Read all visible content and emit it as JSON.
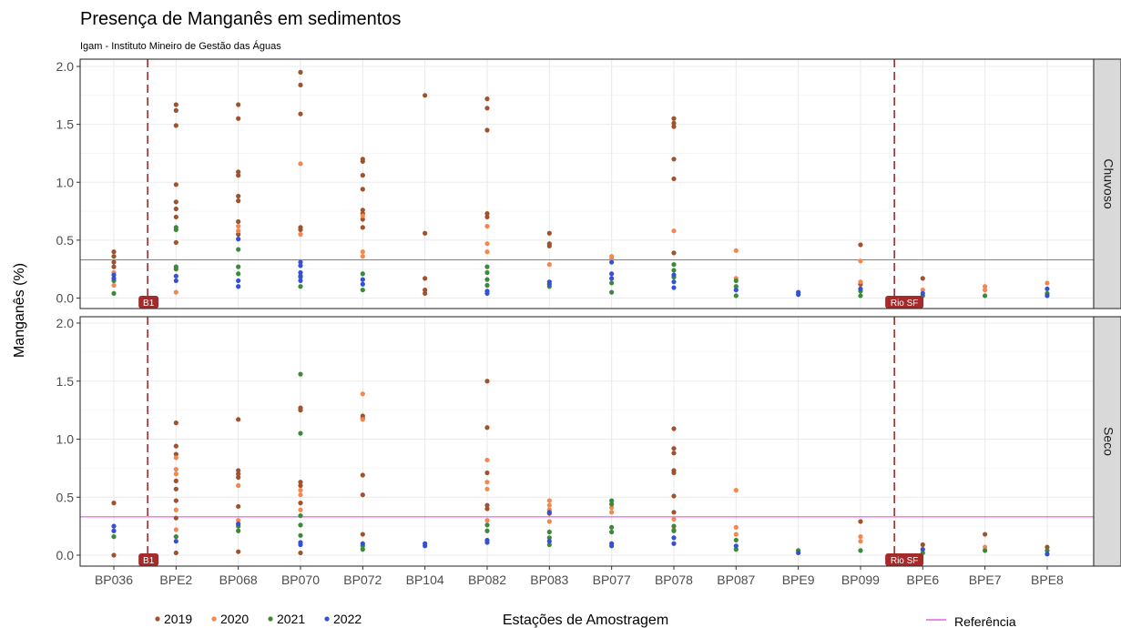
{
  "chart_data": {
    "type": "scatter",
    "title": "Presença de Manganês em sedimentos",
    "subtitle": "Igam - Instituto Mineiro de Gestão das Águas",
    "xlabel": "Estações de Amostragem",
    "ylabel": "Manganês (%)",
    "ylim": [
      -0.08,
      2.05
    ],
    "yticks": [
      "0.0",
      "0.5",
      "1.0",
      "1.5",
      "2.0"
    ],
    "grid": true,
    "categories": [
      "BP036",
      "BPE2",
      "BP068",
      "BP070",
      "BP072",
      "BP104",
      "BP082",
      "BP083",
      "BP077",
      "BP078",
      "BP087",
      "BPE9",
      "BP099",
      "BPE6",
      "BPE7",
      "BPE8"
    ],
    "facets": [
      "Chuvoso",
      "Seco"
    ],
    "colors": {
      "2019": "#a0522d",
      "2020": "#f4874e",
      "2021": "#3a8a3a",
      "2022": "#3550d4"
    },
    "reference": {
      "label": "Referência",
      "value": 0.33,
      "color": "#e040e0"
    },
    "vlines": [
      {
        "label": "B1",
        "after_category": "BP036"
      },
      {
        "label": "Rio SF",
        "after_category": "BP099"
      }
    ],
    "legend": {
      "placement": "bottom",
      "items": [
        "2019",
        "2020",
        "2021",
        "2022"
      ]
    },
    "series": [
      {
        "facet": "Chuvoso",
        "name": "2019",
        "points": [
          [
            "BP036",
            0.4
          ],
          [
            "BP036",
            0.36
          ],
          [
            "BP036",
            0.31
          ],
          [
            "BP036",
            0.27
          ],
          [
            "BPE2",
            1.67
          ],
          [
            "BPE2",
            1.62
          ],
          [
            "BPE2",
            1.49
          ],
          [
            "BPE2",
            0.98
          ],
          [
            "BPE2",
            0.83
          ],
          [
            "BPE2",
            0.77
          ],
          [
            "BPE2",
            0.7
          ],
          [
            "BPE2",
            0.48
          ],
          [
            "BP068",
            1.67
          ],
          [
            "BP068",
            1.55
          ],
          [
            "BP068",
            1.09
          ],
          [
            "BP068",
            1.06
          ],
          [
            "BP068",
            0.88
          ],
          [
            "BP068",
            0.84
          ],
          [
            "BP068",
            0.66
          ],
          [
            "BP068",
            0.55
          ],
          [
            "BP070",
            1.95
          ],
          [
            "BP070",
            1.84
          ],
          [
            "BP070",
            1.59
          ],
          [
            "BP070",
            0.61
          ],
          [
            "BP070",
            0.59
          ],
          [
            "BP072",
            1.2
          ],
          [
            "BP072",
            1.18
          ],
          [
            "BP072",
            1.06
          ],
          [
            "BP072",
            0.94
          ],
          [
            "BP072",
            0.76
          ],
          [
            "BP072",
            0.73
          ],
          [
            "BP072",
            0.68
          ],
          [
            "BP072",
            0.61
          ],
          [
            "BP104",
            1.75
          ],
          [
            "BP104",
            0.56
          ],
          [
            "BP104",
            0.17
          ],
          [
            "BP104",
            0.07
          ],
          [
            "BP104",
            0.04
          ],
          [
            "BP082",
            1.72
          ],
          [
            "BP082",
            1.64
          ],
          [
            "BP082",
            1.45
          ],
          [
            "BP082",
            0.73
          ],
          [
            "BP082",
            0.7
          ],
          [
            "BP083",
            0.56
          ],
          [
            "BP083",
            0.47
          ],
          [
            "BP083",
            0.45
          ],
          [
            "BP078",
            1.55
          ],
          [
            "BP078",
            1.51
          ],
          [
            "BP078",
            1.48
          ],
          [
            "BP078",
            1.2
          ],
          [
            "BP078",
            1.03
          ],
          [
            "BP078",
            0.39
          ],
          [
            "BP099",
            0.46
          ],
          [
            "BP099",
            0.12
          ],
          [
            "BPE6",
            0.17
          ]
        ]
      },
      {
        "facet": "Chuvoso",
        "name": "2020",
        "points": [
          [
            "BP036",
            0.22
          ],
          [
            "BP036",
            0.11
          ],
          [
            "BPE2",
            0.05
          ],
          [
            "BP068",
            0.62
          ],
          [
            "BP068",
            0.58
          ],
          [
            "BP070",
            1.16
          ],
          [
            "BP070",
            0.55
          ],
          [
            "BP072",
            0.71
          ],
          [
            "BP072",
            0.4
          ],
          [
            "BP072",
            0.36
          ],
          [
            "BP082",
            0.62
          ],
          [
            "BP082",
            0.47
          ],
          [
            "BP082",
            0.4
          ],
          [
            "BP083",
            0.29
          ],
          [
            "BP077",
            0.36
          ],
          [
            "BP077",
            0.34
          ],
          [
            "BP078",
            0.58
          ],
          [
            "BP087",
            0.41
          ],
          [
            "BP087",
            0.17
          ],
          [
            "BP099",
            0.32
          ],
          [
            "BP099",
            0.14
          ],
          [
            "BPE6",
            0.07
          ],
          [
            "BPE7",
            0.1
          ],
          [
            "BPE7",
            0.07
          ],
          [
            "BPE8",
            0.13
          ]
        ]
      },
      {
        "facet": "Chuvoso",
        "name": "2021",
        "points": [
          [
            "BP036",
            0.04
          ],
          [
            "BP036",
            0.15
          ],
          [
            "BPE2",
            0.61
          ],
          [
            "BPE2",
            0.59
          ],
          [
            "BPE2",
            0.27
          ],
          [
            "BPE2",
            0.25
          ],
          [
            "BP068",
            0.42
          ],
          [
            "BP068",
            0.27
          ],
          [
            "BP068",
            0.21
          ],
          [
            "BP070",
            0.18
          ],
          [
            "BP070",
            0.1
          ],
          [
            "BP072",
            0.21
          ],
          [
            "BP072",
            0.07
          ],
          [
            "BP082",
            0.27
          ],
          [
            "BP082",
            0.22
          ],
          [
            "BP082",
            0.16
          ],
          [
            "BP082",
            0.11
          ],
          [
            "BP083",
            0.1
          ],
          [
            "BP077",
            0.13
          ],
          [
            "BP077",
            0.05
          ],
          [
            "BP078",
            0.29
          ],
          [
            "BP078",
            0.24
          ],
          [
            "BP078",
            0.18
          ],
          [
            "BP087",
            0.15
          ],
          [
            "BP087",
            0.1
          ],
          [
            "BP087",
            0.02
          ],
          [
            "BP099",
            0.06
          ],
          [
            "BP099",
            0.02
          ],
          [
            "BPE6",
            0.02
          ],
          [
            "BPE7",
            0.02
          ],
          [
            "BPE8",
            0.04
          ]
        ]
      },
      {
        "facet": "Chuvoso",
        "name": "2022",
        "points": [
          [
            "BP036",
            0.2
          ],
          [
            "BP036",
            0.17
          ],
          [
            "BPE2",
            0.19
          ],
          [
            "BPE2",
            0.15
          ],
          [
            "BP068",
            0.51
          ],
          [
            "BP068",
            0.15
          ],
          [
            "BP068",
            0.1
          ],
          [
            "BP070",
            0.31
          ],
          [
            "BP070",
            0.28
          ],
          [
            "BP070",
            0.22
          ],
          [
            "BP070",
            0.19
          ],
          [
            "BP070",
            0.15
          ],
          [
            "BP072",
            0.16
          ],
          [
            "BP072",
            0.12
          ],
          [
            "BP082",
            0.06
          ],
          [
            "BP082",
            0.04
          ],
          [
            "BP083",
            0.14
          ],
          [
            "BP083",
            0.12
          ],
          [
            "BP077",
            0.31
          ],
          [
            "BP077",
            0.21
          ],
          [
            "BP077",
            0.17
          ],
          [
            "BP078",
            0.2
          ],
          [
            "BP078",
            0.14
          ],
          [
            "BP078",
            0.09
          ],
          [
            "BP087",
            0.07
          ],
          [
            "BPE9",
            0.05
          ],
          [
            "BPE9",
            0.03
          ],
          [
            "BP099",
            0.08
          ],
          [
            "BPE6",
            0.04
          ],
          [
            "BPE8",
            0.08
          ],
          [
            "BPE8",
            0.02
          ]
        ]
      },
      {
        "facet": "Seco",
        "name": "2019",
        "points": [
          [
            "BP036",
            0.45
          ],
          [
            "BP036",
            0.0
          ],
          [
            "BPE2",
            1.14
          ],
          [
            "BPE2",
            0.94
          ],
          [
            "BPE2",
            0.87
          ],
          [
            "BPE2",
            0.64
          ],
          [
            "BPE2",
            0.57
          ],
          [
            "BPE2",
            0.47
          ],
          [
            "BPE2",
            0.32
          ],
          [
            "BPE2",
            0.02
          ],
          [
            "BP068",
            1.17
          ],
          [
            "BP068",
            0.73
          ],
          [
            "BP068",
            0.7
          ],
          [
            "BP068",
            0.67
          ],
          [
            "BP068",
            0.42
          ],
          [
            "BP068",
            0.03
          ],
          [
            "BP070",
            1.27
          ],
          [
            "BP070",
            1.25
          ],
          [
            "BP070",
            0.63
          ],
          [
            "BP070",
            0.6
          ],
          [
            "BP070",
            0.45
          ],
          [
            "BP070",
            0.02
          ],
          [
            "BP072",
            1.2
          ],
          [
            "BP072",
            1.18
          ],
          [
            "BP072",
            0.69
          ],
          [
            "BP072",
            0.52
          ],
          [
            "BP072",
            0.18
          ],
          [
            "BP082",
            1.5
          ],
          [
            "BP082",
            1.1
          ],
          [
            "BP082",
            0.71
          ],
          [
            "BP082",
            0.43
          ],
          [
            "BP082",
            0.4
          ],
          [
            "BP083",
            0.36
          ],
          [
            "BP078",
            1.09
          ],
          [
            "BP078",
            0.92
          ],
          [
            "BP078",
            0.88
          ],
          [
            "BP078",
            0.73
          ],
          [
            "BP078",
            0.71
          ],
          [
            "BP078",
            0.51
          ],
          [
            "BP078",
            0.37
          ],
          [
            "BP099",
            0.29
          ],
          [
            "BPE6",
            0.09
          ],
          [
            "BPE7",
            0.18
          ],
          [
            "BPE8",
            0.07
          ]
        ]
      },
      {
        "facet": "Seco",
        "name": "2020",
        "points": [
          [
            "BPE2",
            0.84
          ],
          [
            "BPE2",
            0.74
          ],
          [
            "BPE2",
            0.7
          ],
          [
            "BPE2",
            0.39
          ],
          [
            "BPE2",
            0.22
          ],
          [
            "BP068",
            0.6
          ],
          [
            "BP068",
            0.3
          ],
          [
            "BP070",
            0.56
          ],
          [
            "BP070",
            0.52
          ],
          [
            "BP070",
            0.39
          ],
          [
            "BP072",
            1.39
          ],
          [
            "BP072",
            1.17
          ],
          [
            "BP082",
            0.82
          ],
          [
            "BP082",
            0.63
          ],
          [
            "BP082",
            0.57
          ],
          [
            "BP082",
            0.3
          ],
          [
            "BP083",
            0.47
          ],
          [
            "BP083",
            0.43
          ],
          [
            "BP083",
            0.39
          ],
          [
            "BP083",
            0.29
          ],
          [
            "BP077",
            0.41
          ],
          [
            "BP077",
            0.37
          ],
          [
            "BP078",
            0.31
          ],
          [
            "BP078",
            0.22
          ],
          [
            "BP087",
            0.56
          ],
          [
            "BP087",
            0.24
          ],
          [
            "BP087",
            0.18
          ],
          [
            "BP099",
            0.16
          ],
          [
            "BP099",
            0.12
          ],
          [
            "BPE7",
            0.07
          ]
        ]
      },
      {
        "facet": "Seco",
        "name": "2021",
        "points": [
          [
            "BP036",
            0.16
          ],
          [
            "BPE2",
            0.16
          ],
          [
            "BP068",
            0.25
          ],
          [
            "BP068",
            0.21
          ],
          [
            "BP070",
            1.56
          ],
          [
            "BP070",
            1.05
          ],
          [
            "BP070",
            0.34
          ],
          [
            "BP070",
            0.26
          ],
          [
            "BP070",
            0.17
          ],
          [
            "BP072",
            0.08
          ],
          [
            "BP072",
            0.05
          ],
          [
            "BP082",
            0.26
          ],
          [
            "BP082",
            0.21
          ],
          [
            "BP083",
            0.2
          ],
          [
            "BP083",
            0.15
          ],
          [
            "BP083",
            0.09
          ],
          [
            "BP077",
            0.47
          ],
          [
            "BP077",
            0.44
          ],
          [
            "BP077",
            0.24
          ],
          [
            "BP077",
            0.2
          ],
          [
            "BP078",
            0.25
          ],
          [
            "BP078",
            0.21
          ],
          [
            "BP087",
            0.13
          ],
          [
            "BP087",
            0.05
          ],
          [
            "BPE9",
            0.04
          ],
          [
            "BP099",
            0.04
          ],
          [
            "BPE6",
            0.02
          ],
          [
            "BPE7",
            0.04
          ],
          [
            "BPE8",
            0.04
          ]
        ]
      },
      {
        "facet": "Seco",
        "name": "2022",
        "points": [
          [
            "BP036",
            0.25
          ],
          [
            "BP036",
            0.21
          ],
          [
            "BPE2",
            0.12
          ],
          [
            "BP068",
            0.27
          ],
          [
            "BP070",
            0.11
          ],
          [
            "BP070",
            0.09
          ],
          [
            "BP072",
            0.1
          ],
          [
            "BP104",
            0.1
          ],
          [
            "BP104",
            0.08
          ],
          [
            "BP082",
            0.13
          ],
          [
            "BP082",
            0.11
          ],
          [
            "BP083",
            0.37
          ],
          [
            "BP083",
            0.12
          ],
          [
            "BP077",
            0.1
          ],
          [
            "BP077",
            0.08
          ],
          [
            "BP078",
            0.15
          ],
          [
            "BP078",
            0.1
          ],
          [
            "BP087",
            0.08
          ],
          [
            "BPE9",
            0.02
          ],
          [
            "BPE6",
            0.05
          ],
          [
            "BPE8",
            0.01
          ]
        ]
      }
    ]
  }
}
